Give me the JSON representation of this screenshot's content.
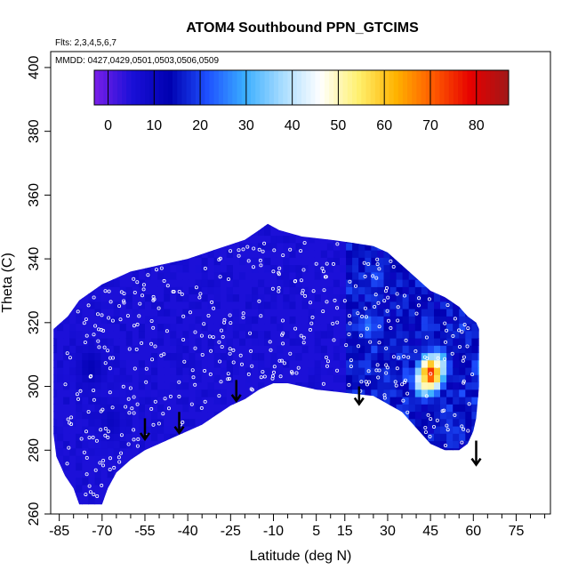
{
  "chart_data": {
    "type": "heatmap",
    "title": "ATOM4 Southbound PPN_GTCIMS",
    "subtitle_flights": "Flts: 2,3,4,5,6,7",
    "subtitle_dates": "MMDD: 0427,0429,0501,0503,0506,0509",
    "xlabel": "Latitude (deg N)",
    "ylabel": "Theta (C)",
    "xlim": [
      -88,
      87
    ],
    "ylim": [
      260,
      405
    ],
    "x_ticks": [
      "-85",
      "-70",
      "-55",
      "-40",
      "-25",
      "-10",
      "5",
      "15",
      "30",
      "45",
      "60",
      "75"
    ],
    "y_ticks": [
      "260",
      "280",
      "300",
      "320",
      "340",
      "360",
      "380",
      "400"
    ],
    "colorbar": {
      "range": [
        -3,
        87
      ],
      "ticks": [
        "0",
        "10",
        "20",
        "30",
        "40",
        "50",
        "60",
        "70",
        "80"
      ],
      "colors": [
        "#7a1fe8",
        "#1a10d8",
        "#0000b0",
        "#1e50ff",
        "#3aaeff",
        "#a8dcff",
        "#ffffff",
        "#fff170",
        "#ffb300",
        "#ff5a00",
        "#e60000",
        "#a01818"
      ]
    },
    "background_value": 5,
    "hotspots": [
      {
        "lat": 44,
        "theta": 303,
        "value": 75
      },
      {
        "lat": 42,
        "theta": 301,
        "value": 55
      },
      {
        "lat": 46,
        "theta": 305,
        "value": 50
      },
      {
        "lat": 22,
        "theta": 318,
        "value": 25
      },
      {
        "lat": 25,
        "theta": 333,
        "value": 22
      },
      {
        "lat": 62,
        "theta": 305,
        "value": 28
      },
      {
        "lat": 55,
        "theta": 318,
        "value": 18
      },
      {
        "lat": 28,
        "theta": 297,
        "value": 18
      },
      {
        "lat": 58,
        "theta": 292,
        "value": 15
      },
      {
        "lat": 48,
        "theta": 290,
        "value": 18
      },
      {
        "lat": -75,
        "theta": 305,
        "value": 12
      },
      {
        "lat": -68,
        "theta": 288,
        "value": 10
      }
    ],
    "arrows_lat": [
      -55,
      -43,
      -23,
      20,
      61
    ]
  },
  "colors": {
    "plot_border": "#000000",
    "sample_points": "#ffffff",
    "arrow": "#000000"
  }
}
